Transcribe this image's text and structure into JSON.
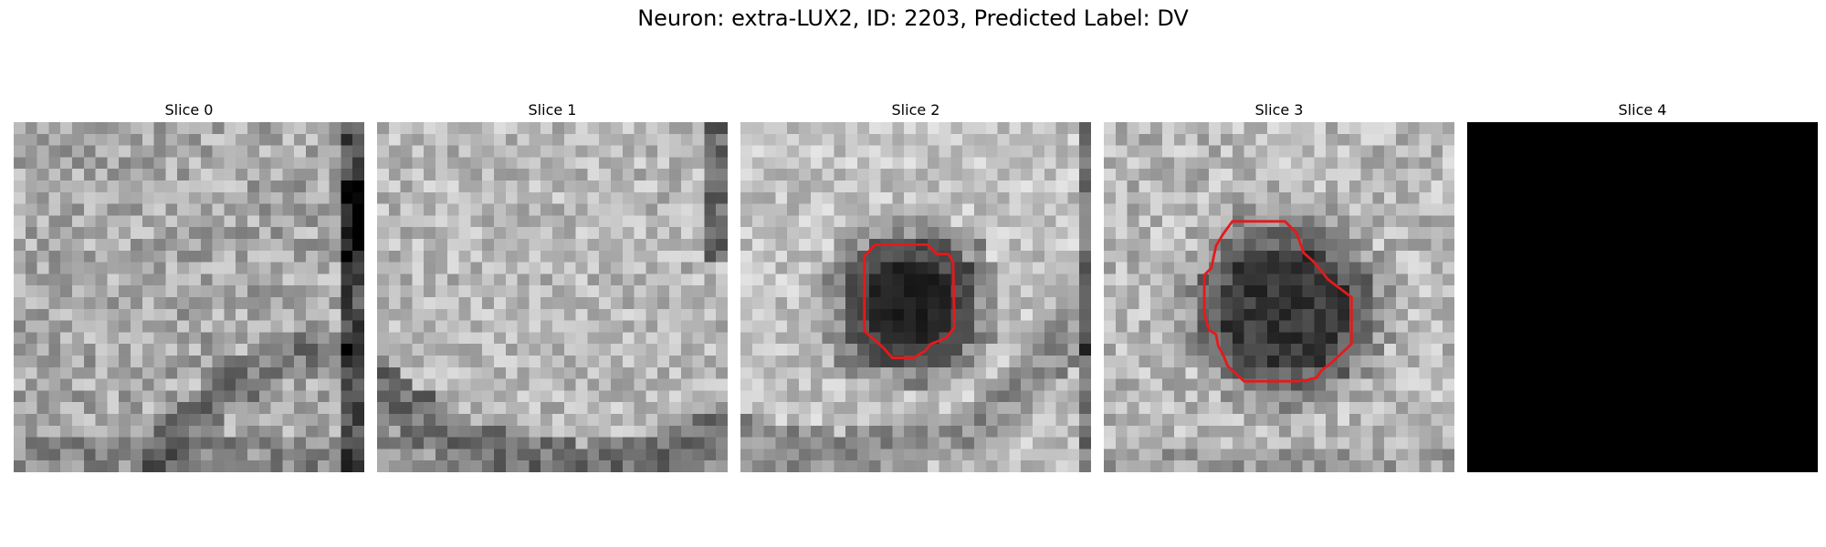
{
  "figure": {
    "title": "Neuron: extra-LUX2, ID: 2203, Predicted Label: DV"
  },
  "panels": [
    {
      "title": "Slice 0",
      "content": "microscopy-grayscale",
      "has_contour": false
    },
    {
      "title": "Slice 1",
      "content": "microscopy-grayscale",
      "has_contour": false
    },
    {
      "title": "Slice 2",
      "content": "microscopy-grayscale",
      "has_contour": true
    },
    {
      "title": "Slice 3",
      "content": "microscopy-grayscale",
      "has_contour": true
    },
    {
      "title": "Slice 4",
      "content": "blank-black",
      "has_contour": false
    }
  ],
  "colors": {
    "contour": "#e41a1c",
    "background": "#ffffff"
  }
}
